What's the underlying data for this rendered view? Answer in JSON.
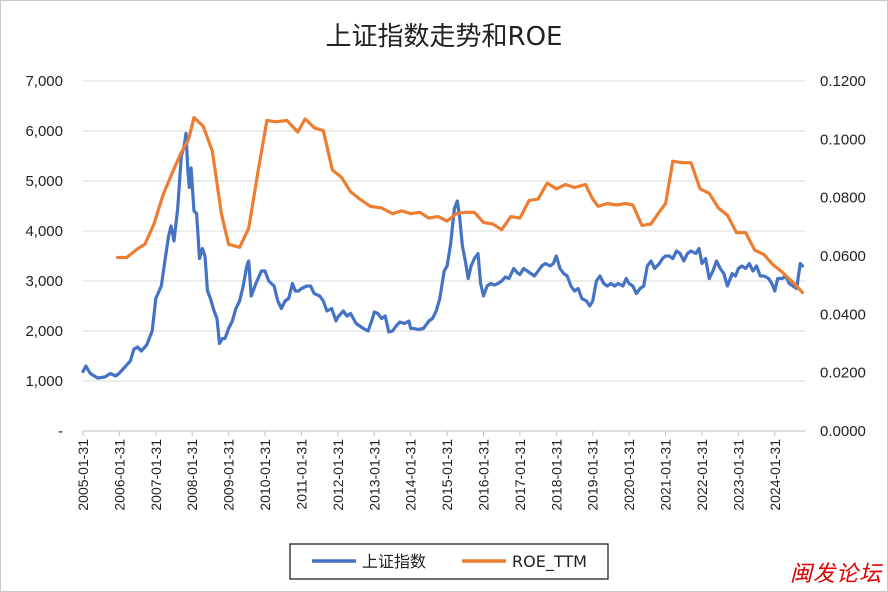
{
  "chart_data": {
    "type": "line",
    "title": "上证指数走势和ROE",
    "xlabel": "",
    "ylabel_left": "",
    "ylabel_right": "",
    "x_tick_labels": [
      "2005-01-31",
      "2006-01-31",
      "2007-01-31",
      "2008-01-31",
      "2009-01-31",
      "2010-01-31",
      "2011-01-31",
      "2012-01-31",
      "2013-01-31",
      "2014-01-31",
      "2015-01-31",
      "2016-01-31",
      "2017-01-31",
      "2018-01-31",
      "2019-01-31",
      "2020-01-31",
      "2021-01-31",
      "2022-01-31",
      "2023-01-31",
      "2024-01-31"
    ],
    "left_axis": {
      "min": 0,
      "max": 7000,
      "ticks": [
        "-",
        "1,000",
        "2,000",
        "3,000",
        "4,000",
        "5,000",
        "6,000",
        "7,000"
      ]
    },
    "right_axis": {
      "min": 0,
      "max": 0.12,
      "ticks": [
        "0.0000",
        "0.0200",
        "0.0400",
        "0.0600",
        "0.0800",
        "0.1000",
        "0.1200"
      ]
    },
    "grid": "horizontal",
    "legend_position": "bottom",
    "series": [
      {
        "name": "上证指数",
        "axis": "left",
        "color": "#4472C4",
        "points": [
          [
            2005.0,
            1190
          ],
          [
            2005.08,
            1300
          ],
          [
            2005.2,
            1150
          ],
          [
            2005.4,
            1060
          ],
          [
            2005.6,
            1080
          ],
          [
            2005.75,
            1150
          ],
          [
            2005.9,
            1100
          ],
          [
            2006.0,
            1160
          ],
          [
            2006.15,
            1280
          ],
          [
            2006.3,
            1400
          ],
          [
            2006.4,
            1640
          ],
          [
            2006.5,
            1680
          ],
          [
            2006.6,
            1600
          ],
          [
            2006.75,
            1720
          ],
          [
            2006.9,
            2000
          ],
          [
            2007.0,
            2650
          ],
          [
            2007.15,
            2900
          ],
          [
            2007.25,
            3400
          ],
          [
            2007.35,
            3900
          ],
          [
            2007.42,
            4100
          ],
          [
            2007.5,
            3800
          ],
          [
            2007.6,
            4450
          ],
          [
            2007.7,
            5500
          ],
          [
            2007.78,
            5700
          ],
          [
            2007.83,
            5950
          ],
          [
            2007.88,
            5200
          ],
          [
            2007.92,
            4870
          ],
          [
            2007.97,
            5260
          ],
          [
            2008.05,
            4400
          ],
          [
            2008.12,
            4350
          ],
          [
            2008.2,
            3450
          ],
          [
            2008.28,
            3650
          ],
          [
            2008.35,
            3500
          ],
          [
            2008.42,
            2800
          ],
          [
            2008.5,
            2650
          ],
          [
            2008.6,
            2400
          ],
          [
            2008.68,
            2250
          ],
          [
            2008.75,
            1750
          ],
          [
            2008.83,
            1850
          ],
          [
            2008.9,
            1850
          ],
          [
            2009.0,
            2050
          ],
          [
            2009.1,
            2200
          ],
          [
            2009.2,
            2450
          ],
          [
            2009.3,
            2600
          ],
          [
            2009.4,
            2900
          ],
          [
            2009.5,
            3300
          ],
          [
            2009.55,
            3400
          ],
          [
            2009.62,
            2700
          ],
          [
            2009.75,
            2950
          ],
          [
            2009.9,
            3200
          ],
          [
            2010.0,
            3200
          ],
          [
            2010.1,
            3000
          ],
          [
            2010.25,
            2900
          ],
          [
            2010.35,
            2600
          ],
          [
            2010.45,
            2450
          ],
          [
            2010.55,
            2600
          ],
          [
            2010.65,
            2650
          ],
          [
            2010.75,
            2950
          ],
          [
            2010.83,
            2800
          ],
          [
            2010.92,
            2800
          ],
          [
            2011.0,
            2850
          ],
          [
            2011.15,
            2900
          ],
          [
            2011.25,
            2900
          ],
          [
            2011.35,
            2750
          ],
          [
            2011.5,
            2700
          ],
          [
            2011.6,
            2600
          ],
          [
            2011.7,
            2400
          ],
          [
            2011.83,
            2450
          ],
          [
            2011.95,
            2200
          ],
          [
            2012.0,
            2280
          ],
          [
            2012.15,
            2400
          ],
          [
            2012.25,
            2300
          ],
          [
            2012.35,
            2350
          ],
          [
            2012.5,
            2150
          ],
          [
            2012.6,
            2100
          ],
          [
            2012.7,
            2050
          ],
          [
            2012.83,
            2000
          ],
          [
            2012.95,
            2250
          ],
          [
            2013.0,
            2380
          ],
          [
            2013.1,
            2350
          ],
          [
            2013.2,
            2250
          ],
          [
            2013.3,
            2300
          ],
          [
            2013.4,
            1980
          ],
          [
            2013.5,
            2000
          ],
          [
            2013.6,
            2100
          ],
          [
            2013.7,
            2180
          ],
          [
            2013.83,
            2150
          ],
          [
            2013.95,
            2200
          ],
          [
            2014.0,
            2050
          ],
          [
            2014.1,
            2050
          ],
          [
            2014.2,
            2030
          ],
          [
            2014.35,
            2050
          ],
          [
            2014.5,
            2200
          ],
          [
            2014.6,
            2250
          ],
          [
            2014.7,
            2400
          ],
          [
            2014.8,
            2650
          ],
          [
            2014.92,
            3200
          ],
          [
            2015.0,
            3300
          ],
          [
            2015.1,
            3750
          ],
          [
            2015.2,
            4450
          ],
          [
            2015.28,
            4600
          ],
          [
            2015.35,
            4250
          ],
          [
            2015.42,
            3700
          ],
          [
            2015.5,
            3400
          ],
          [
            2015.58,
            3050
          ],
          [
            2015.66,
            3300
          ],
          [
            2015.75,
            3450
          ],
          [
            2015.85,
            3550
          ],
          [
            2015.92,
            2950
          ],
          [
            2016.0,
            2700
          ],
          [
            2016.1,
            2900
          ],
          [
            2016.2,
            2950
          ],
          [
            2016.3,
            2920
          ],
          [
            2016.4,
            2950
          ],
          [
            2016.5,
            3000
          ],
          [
            2016.6,
            3080
          ],
          [
            2016.7,
            3050
          ],
          [
            2016.83,
            3250
          ],
          [
            2016.95,
            3150
          ],
          [
            2017.0,
            3130
          ],
          [
            2017.1,
            3250
          ],
          [
            2017.2,
            3200
          ],
          [
            2017.3,
            3150
          ],
          [
            2017.4,
            3100
          ],
          [
            2017.5,
            3200
          ],
          [
            2017.6,
            3300
          ],
          [
            2017.7,
            3350
          ],
          [
            2017.83,
            3300
          ],
          [
            2017.92,
            3350
          ],
          [
            2018.0,
            3500
          ],
          [
            2018.1,
            3250
          ],
          [
            2018.2,
            3150
          ],
          [
            2018.3,
            3100
          ],
          [
            2018.4,
            2900
          ],
          [
            2018.5,
            2800
          ],
          [
            2018.6,
            2850
          ],
          [
            2018.7,
            2650
          ],
          [
            2018.83,
            2600
          ],
          [
            2018.92,
            2500
          ],
          [
            2019.0,
            2600
          ],
          [
            2019.1,
            3000
          ],
          [
            2019.2,
            3100
          ],
          [
            2019.3,
            2950
          ],
          [
            2019.4,
            2900
          ],
          [
            2019.5,
            2950
          ],
          [
            2019.6,
            2900
          ],
          [
            2019.7,
            2950
          ],
          [
            2019.83,
            2900
          ],
          [
            2019.92,
            3050
          ],
          [
            2020.0,
            2950
          ],
          [
            2020.1,
            2900
          ],
          [
            2020.2,
            2750
          ],
          [
            2020.3,
            2850
          ],
          [
            2020.4,
            2900
          ],
          [
            2020.5,
            3300
          ],
          [
            2020.6,
            3400
          ],
          [
            2020.7,
            3250
          ],
          [
            2020.83,
            3350
          ],
          [
            2020.92,
            3450
          ],
          [
            2021.0,
            3500
          ],
          [
            2021.1,
            3500
          ],
          [
            2021.2,
            3450
          ],
          [
            2021.3,
            3600
          ],
          [
            2021.4,
            3550
          ],
          [
            2021.5,
            3400
          ],
          [
            2021.6,
            3550
          ],
          [
            2021.7,
            3600
          ],
          [
            2021.83,
            3550
          ],
          [
            2021.92,
            3650
          ],
          [
            2022.0,
            3350
          ],
          [
            2022.1,
            3450
          ],
          [
            2022.2,
            3050
          ],
          [
            2022.3,
            3200
          ],
          [
            2022.4,
            3400
          ],
          [
            2022.5,
            3250
          ],
          [
            2022.6,
            3150
          ],
          [
            2022.7,
            2900
          ],
          [
            2022.83,
            3150
          ],
          [
            2022.92,
            3100
          ],
          [
            2023.0,
            3250
          ],
          [
            2023.1,
            3300
          ],
          [
            2023.2,
            3250
          ],
          [
            2023.3,
            3350
          ],
          [
            2023.4,
            3200
          ],
          [
            2023.5,
            3300
          ],
          [
            2023.6,
            3100
          ],
          [
            2023.7,
            3100
          ],
          [
            2023.83,
            3050
          ],
          [
            2023.92,
            2950
          ],
          [
            2024.0,
            2800
          ],
          [
            2024.08,
            3050
          ],
          [
            2024.2,
            3050
          ],
          [
            2024.3,
            3100
          ],
          [
            2024.4,
            2950
          ],
          [
            2024.5,
            2900
          ],
          [
            2024.6,
            2850
          ],
          [
            2024.7,
            3350
          ],
          [
            2024.76,
            3300
          ]
        ]
      },
      {
        "name": "ROE_TTM",
        "axis": "right",
        "color": "#ED7D31",
        "points": [
          [
            2005.95,
            0.0595
          ],
          [
            2006.2,
            0.0595
          ],
          [
            2006.5,
            0.0625
          ],
          [
            2006.7,
            0.064
          ],
          [
            2006.95,
            0.071
          ],
          [
            2007.2,
            0.081
          ],
          [
            2007.45,
            0.0885
          ],
          [
            2007.7,
            0.0955
          ],
          [
            2007.9,
            0.1
          ],
          [
            2008.05,
            0.1075
          ],
          [
            2008.3,
            0.1045
          ],
          [
            2008.55,
            0.096
          ],
          [
            2008.8,
            0.0745
          ],
          [
            2009.0,
            0.064
          ],
          [
            2009.3,
            0.063
          ],
          [
            2009.55,
            0.0695
          ],
          [
            2009.8,
            0.0885
          ],
          [
            2010.05,
            0.1065
          ],
          [
            2010.3,
            0.106
          ],
          [
            2010.6,
            0.1065
          ],
          [
            2010.9,
            0.1025
          ],
          [
            2011.1,
            0.107
          ],
          [
            2011.35,
            0.104
          ],
          [
            2011.6,
            0.103
          ],
          [
            2011.85,
            0.0895
          ],
          [
            2012.1,
            0.087
          ],
          [
            2012.35,
            0.082
          ],
          [
            2012.6,
            0.0795
          ],
          [
            2012.9,
            0.077
          ],
          [
            2013.2,
            0.0765
          ],
          [
            2013.5,
            0.0745
          ],
          [
            2013.75,
            0.0755
          ],
          [
            2014.0,
            0.0745
          ],
          [
            2014.25,
            0.075
          ],
          [
            2014.5,
            0.073
          ],
          [
            2014.75,
            0.0735
          ],
          [
            2015.0,
            0.072
          ],
          [
            2015.25,
            0.0745
          ],
          [
            2015.5,
            0.075
          ],
          [
            2015.75,
            0.075
          ],
          [
            2016.0,
            0.0715
          ],
          [
            2016.25,
            0.071
          ],
          [
            2016.5,
            0.069
          ],
          [
            2016.75,
            0.0735
          ],
          [
            2017.0,
            0.073
          ],
          [
            2017.25,
            0.079
          ],
          [
            2017.5,
            0.0795
          ],
          [
            2017.75,
            0.085
          ],
          [
            2018.0,
            0.083
          ],
          [
            2018.25,
            0.0845
          ],
          [
            2018.5,
            0.0835
          ],
          [
            2018.8,
            0.0845
          ],
          [
            2019.0,
            0.0795
          ],
          [
            2019.15,
            0.077
          ],
          [
            2019.4,
            0.078
          ],
          [
            2019.65,
            0.0775
          ],
          [
            2019.9,
            0.078
          ],
          [
            2020.1,
            0.0775
          ],
          [
            2020.35,
            0.0705
          ],
          [
            2020.6,
            0.071
          ],
          [
            2020.85,
            0.0755
          ],
          [
            2021.0,
            0.078
          ],
          [
            2021.2,
            0.0925
          ],
          [
            2021.45,
            0.092
          ],
          [
            2021.7,
            0.092
          ],
          [
            2021.95,
            0.083
          ],
          [
            2022.2,
            0.0815
          ],
          [
            2022.45,
            0.0765
          ],
          [
            2022.7,
            0.074
          ],
          [
            2022.95,
            0.068
          ],
          [
            2023.2,
            0.068
          ],
          [
            2023.45,
            0.062
          ],
          [
            2023.7,
            0.0605
          ],
          [
            2023.95,
            0.057
          ],
          [
            2024.2,
            0.0545
          ],
          [
            2024.45,
            0.0515
          ],
          [
            2024.65,
            0.049
          ],
          [
            2024.76,
            0.0475
          ]
        ]
      }
    ]
  },
  "watermark": "闽发论坛"
}
